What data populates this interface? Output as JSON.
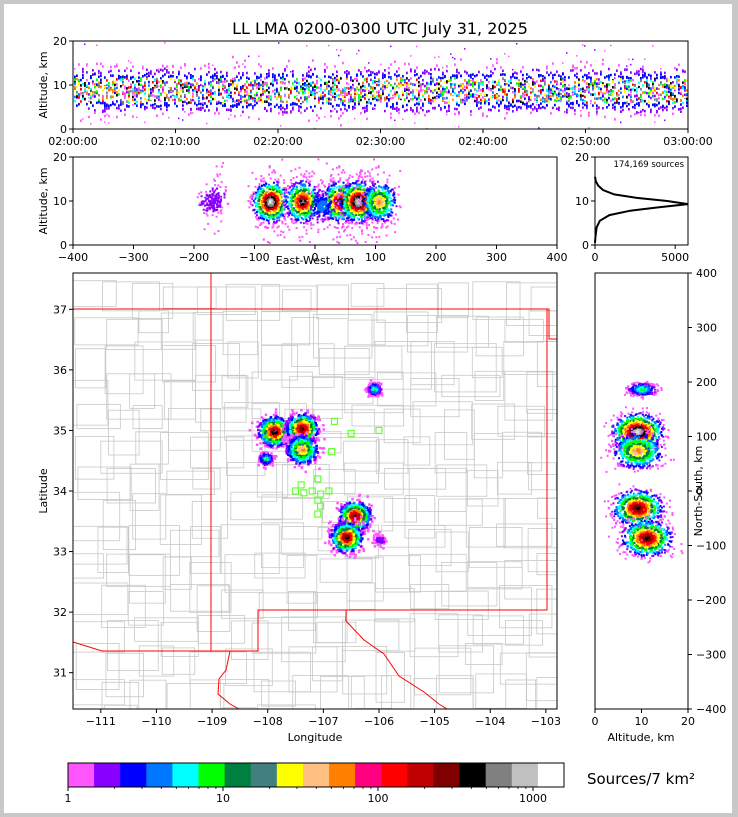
{
  "figure": {
    "title": "LL LMA 0200-0300 UTC July 31, 2025",
    "colorbar_label": "Sources/7 km²",
    "colorbar_ticks": [
      "1",
      "10",
      "100",
      "1000"
    ],
    "colorbar_colors": [
      "#ff55ff",
      "#8800ff",
      "#0000ff",
      "#0077ff",
      "#00ffff",
      "#00ff00",
      "#008040",
      "#408080",
      "#ffff00",
      "#ffbf80",
      "#ff8000",
      "#ff0080",
      "#ff0000",
      "#c00000",
      "#800000",
      "#000000",
      "#808080",
      "#c0c0c0",
      "#ffffff"
    ]
  },
  "chart_data": [
    {
      "id": "time_height",
      "type": "heatmap",
      "ylabel": "Altitude, km",
      "ylim": [
        0,
        20
      ],
      "yticks": [
        "0",
        "10",
        "20"
      ],
      "xlim": [
        "02:00:00",
        "03:00:00"
      ],
      "xticks": [
        "02:00:00",
        "02:10:00",
        "02:20:00",
        "02:30:00",
        "02:40:00",
        "02:50:00",
        "03:00:00"
      ],
      "band": {
        "core_altitude_km": 9,
        "lower_km": 6,
        "upper_km": 13
      },
      "grid": false
    },
    {
      "id": "ew_height",
      "type": "heatmap",
      "xlabel": "East-West, km",
      "ylabel": "Altitude, km",
      "xlim": [
        -400,
        400
      ],
      "ylim": [
        0,
        20
      ],
      "xticks": [
        "−400",
        "−300",
        "−200",
        "−100",
        "0",
        "100",
        "200",
        "300",
        "400"
      ],
      "yticks": [
        "0",
        "10",
        "20"
      ],
      "cells": [
        {
          "x": -75,
          "alt": 10,
          "peak": "white"
        },
        {
          "x": -22,
          "alt": 10,
          "peak": "grey"
        },
        {
          "x": 40,
          "alt": 10,
          "peak": "grey"
        },
        {
          "x": 70,
          "alt": 10,
          "peak": "white"
        },
        {
          "x": 105,
          "alt": 10,
          "peak": "yellow"
        },
        {
          "x": 10,
          "alt": 9,
          "peak": "blue"
        },
        {
          "x": -165,
          "alt": 11,
          "peak": "violet"
        },
        {
          "x": -175,
          "alt": 10,
          "peak": "violet"
        }
      ]
    },
    {
      "id": "alt_histogram",
      "type": "line",
      "annotation": "174,169 sources",
      "xlim": [
        0,
        5800
      ],
      "ylim": [
        0,
        20
      ],
      "xticks": [
        "0",
        "5000"
      ],
      "yticks": [
        "0",
        "10",
        "20"
      ],
      "points": [
        [
          0,
          0.5
        ],
        [
          30,
          2
        ],
        [
          100,
          4
        ],
        [
          300,
          5.5
        ],
        [
          900,
          6.8
        ],
        [
          2200,
          7.8
        ],
        [
          4000,
          8.6
        ],
        [
          5800,
          9.3
        ],
        [
          4500,
          10
        ],
        [
          2600,
          10.7
        ],
        [
          1200,
          11.5
        ],
        [
          500,
          12.5
        ],
        [
          200,
          13.5
        ],
        [
          50,
          14.5
        ],
        [
          0,
          15.5
        ]
      ]
    },
    {
      "id": "plan_view",
      "type": "heatmap",
      "xlabel": "Longitude",
      "ylabel": "Latitude",
      "xlim": [
        -111.5,
        -102.8
      ],
      "ylim": [
        30.4,
        37.6
      ],
      "xticks": [
        "−111",
        "−110",
        "−109",
        "−108",
        "−107",
        "−106",
        "−105",
        "−104",
        "−103"
      ],
      "yticks": [
        "31",
        "32",
        "33",
        "34",
        "35",
        "36",
        "37"
      ],
      "cells": [
        {
          "lon": -107.9,
          "lat": 35.0,
          "peak": "grey"
        },
        {
          "lon": -107.4,
          "lat": 35.05,
          "peak": "black"
        },
        {
          "lon": -107.4,
          "lat": 34.7,
          "peak": "yellow"
        },
        {
          "lon": -106.45,
          "lat": 33.6,
          "peak": "black"
        },
        {
          "lon": -106.6,
          "lat": 33.25,
          "peak": "black"
        },
        {
          "lon": -106.1,
          "lat": 35.7,
          "peak": "green"
        },
        {
          "lon": -108.05,
          "lat": 34.55,
          "peak": "green"
        },
        {
          "lon": -106.0,
          "lat": 33.2,
          "peak": "violet"
        }
      ],
      "stations": [
        {
          "lon": -106.8,
          "lat": 35.15
        },
        {
          "lon": -106.5,
          "lat": 34.95
        },
        {
          "lon": -106.0,
          "lat": 35.0
        },
        {
          "lon": -106.85,
          "lat": 34.65
        },
        {
          "lon": -107.1,
          "lat": 34.2
        },
        {
          "lon": -107.4,
          "lat": 34.1
        },
        {
          "lon": -107.5,
          "lat": 34.0
        },
        {
          "lon": -107.35,
          "lat": 33.97
        },
        {
          "lon": -107.2,
          "lat": 34.0
        },
        {
          "lon": -107.05,
          "lat": 33.95
        },
        {
          "lon": -106.9,
          "lat": 34.0
        },
        {
          "lon": -107.1,
          "lat": 33.85
        },
        {
          "lon": -107.05,
          "lat": 33.75
        },
        {
          "lon": -107.1,
          "lat": 33.62
        }
      ]
    },
    {
      "id": "ns_height",
      "type": "heatmap",
      "xlabel": "Altitude, km",
      "ylabel": "North-South, km",
      "xlim": [
        0,
        20
      ],
      "ylim": [
        -400,
        400
      ],
      "xticks": [
        "0",
        "10",
        "20"
      ],
      "yticks": [
        "400",
        "300",
        "200",
        "100",
        "0",
        "−100",
        "−200",
        "−300",
        "−400"
      ],
      "cells": [
        {
          "alt": 9,
          "ns": 110,
          "peak": "white"
        },
        {
          "alt": 9,
          "ns": 75,
          "peak": "yellow"
        },
        {
          "alt": 9,
          "ns": -30,
          "peak": "black"
        },
        {
          "alt": 11,
          "ns": -85,
          "peak": "black"
        },
        {
          "alt": 10,
          "ns": 188,
          "peak": "green"
        }
      ]
    }
  ]
}
